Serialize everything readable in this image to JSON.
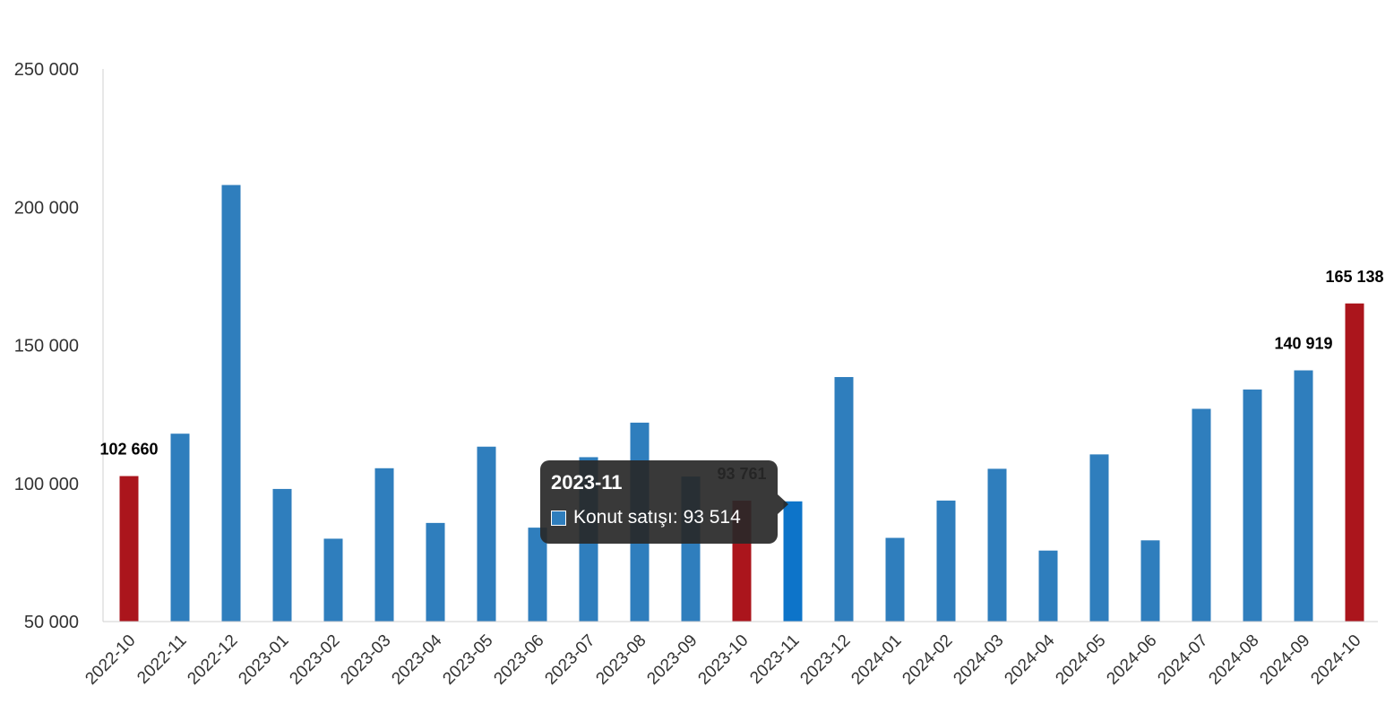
{
  "chart_data": {
    "type": "bar",
    "categories": [
      "2022-10",
      "2022-11",
      "2022-12",
      "2023-01",
      "2023-02",
      "2023-03",
      "2023-04",
      "2023-05",
      "2023-06",
      "2023-07",
      "2023-08",
      "2023-09",
      "2023-10",
      "2023-11",
      "2023-12",
      "2024-01",
      "2024-02",
      "2024-03",
      "2024-04",
      "2024-05",
      "2024-06",
      "2024-07",
      "2024-08",
      "2024-09",
      "2024-10"
    ],
    "series": [
      {
        "name": "Konut satışı",
        "values": [
          102660,
          118000,
          208000,
          98000,
          80000,
          105500,
          85700,
          113300,
          84000,
          109500,
          122000,
          102500,
          93761,
          93514,
          138500,
          80300,
          93800,
          105300,
          75700,
          110500,
          79400,
          127000,
          134000,
          140919,
          165138
        ]
      }
    ],
    "ylim": [
      50000,
      250000
    ],
    "yticks": [
      "50 000",
      "100 000",
      "150 000",
      "200 000",
      "250 000"
    ],
    "ytick_values": [
      50000,
      100000,
      150000,
      200000,
      250000
    ],
    "data_labels": {
      "0": "102 660",
      "12": "93 761",
      "23": "140 919",
      "24": "165 138"
    },
    "highlighted_indices": [
      0,
      12,
      24
    ],
    "hovered_index": 13,
    "colors": {
      "bar": "#2f7ebd",
      "highlight": "#ab151c",
      "hover": "#0d74c9",
      "axis": "#d0d0d0"
    },
    "grid": false,
    "legend": "none"
  },
  "tooltip": {
    "title": "2023-11",
    "series_label": "Konut satışı: 93 514"
  }
}
